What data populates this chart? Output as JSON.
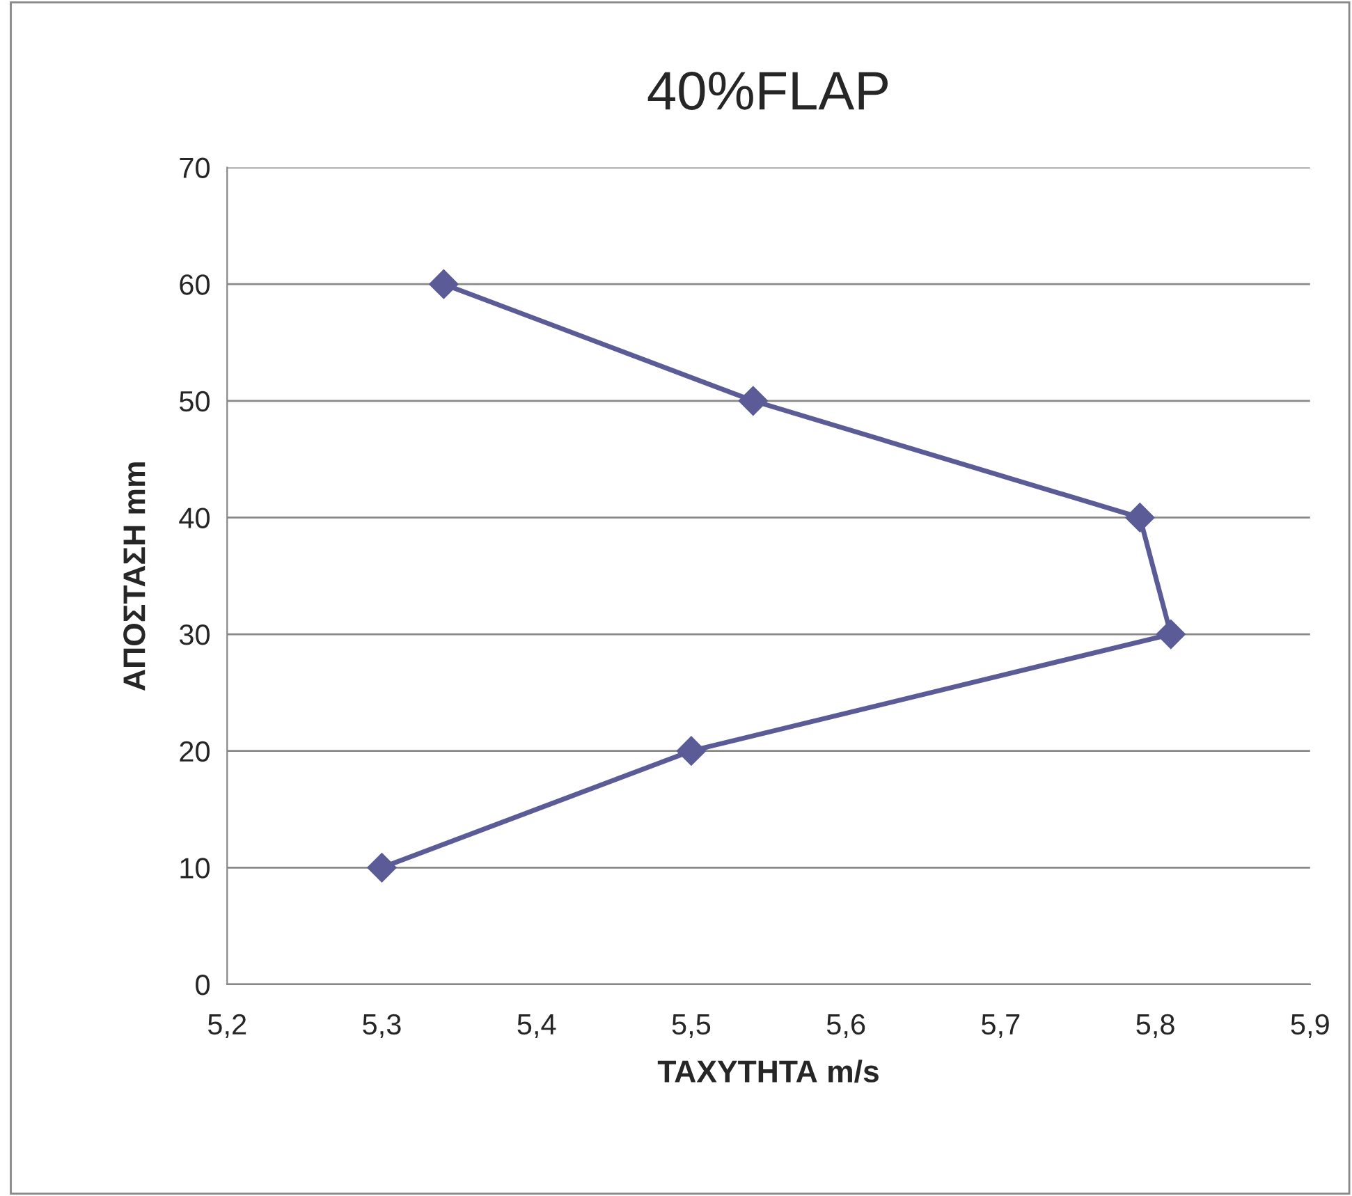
{
  "chart_data": {
    "type": "line",
    "title": "40%FLAP",
    "xlabel": "ΤΑΧΥΤΗΤΑ m/s",
    "ylabel": "ΑΠΟΣΤΑΣΗ mm",
    "x": [
      5.34,
      5.54,
      5.79,
      5.81,
      5.5,
      5.3
    ],
    "series": [
      {
        "color": "#5b5b97",
        "values": [
          60,
          50,
          40,
          30,
          20,
          10
        ]
      }
    ],
    "xlim": [
      5.2,
      5.9
    ],
    "xticks": [
      {
        "value": 5.2,
        "label": "5,2"
      },
      {
        "value": 5.3,
        "label": "5,3"
      },
      {
        "value": 5.4,
        "label": "5,4"
      },
      {
        "value": 5.5,
        "label": "5,5"
      },
      {
        "value": 5.6,
        "label": "5,6"
      },
      {
        "value": 5.7,
        "label": "5,7"
      },
      {
        "value": 5.8,
        "label": "5,8"
      },
      {
        "value": 5.9,
        "label": "5,9"
      }
    ],
    "ylim": [
      0,
      70
    ],
    "yticks": [
      0,
      10,
      20,
      30,
      40,
      50,
      60,
      70
    ],
    "grid": "y",
    "marker": "diamond",
    "line_style": "solid",
    "legend": false
  }
}
